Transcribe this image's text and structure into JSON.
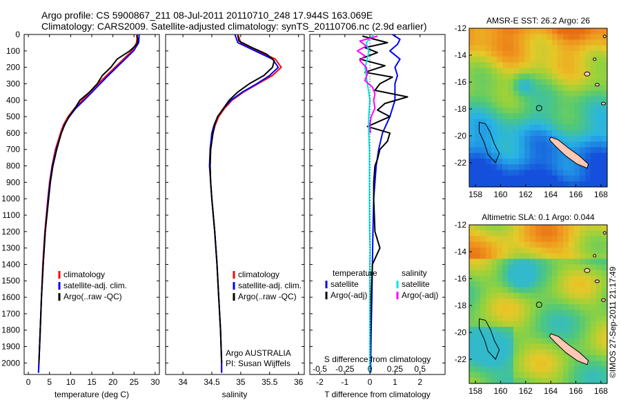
{
  "header": {
    "line1": "Argo profile: CS 5900867_211 08-Jul-2011 20110710_248 17.944S 163.069E",
    "line2": "Climatology: CARS2009. Satellite-adjusted climatology: synTS_20110706.nc (2.9d earlier)"
  },
  "colors": {
    "climatology": "#ff0000",
    "satellite": "#0000ff",
    "argo": "#000000",
    "salinity_satellite": "#00e5e5",
    "salinity_argo": "#ff00ff",
    "land": "#ffc8b4"
  },
  "chart_data": [
    {
      "type": "line",
      "id": "temperature",
      "xlabel": "temperature (deg C)",
      "ylabel": "",
      "xlim": [
        -1,
        31
      ],
      "ylim": [
        2070,
        0
      ],
      "xticks": [
        0,
        5,
        10,
        15,
        20,
        25,
        30
      ],
      "yticks": [
        0,
        100,
        200,
        300,
        400,
        500,
        600,
        700,
        800,
        900,
        1000,
        1100,
        1200,
        1300,
        1400,
        1500,
        1600,
        1700,
        1800,
        1900,
        2000
      ],
      "legend": [
        "climatology",
        "satellite-adj. clim.",
        "Argo(..raw -QC)"
      ],
      "series": [
        {
          "name": "climatology",
          "color": "#ff0000",
          "depth": [
            0,
            50,
            100,
            150,
            200,
            250,
            300,
            350,
            400,
            450,
            500,
            550,
            600,
            700,
            800,
            900,
            1000,
            1200,
            1400,
            1600,
            1800,
            2000,
            2060
          ],
          "values": [
            25.8,
            25.6,
            24.5,
            22.5,
            20.5,
            18.5,
            16.5,
            14.6,
            12.8,
            10.9,
            9.4,
            8.3,
            7.6,
            6.4,
            5.6,
            5.0,
            4.6,
            3.9,
            3.4,
            3.1,
            2.8,
            2.5,
            2.4
          ]
        },
        {
          "name": "satellite-adj. clim.",
          "color": "#0000ff",
          "depth": [
            0,
            50,
            100,
            150,
            200,
            250,
            300,
            350,
            400,
            450,
            500,
            550,
            600,
            700,
            800,
            900,
            1000,
            1200,
            1400,
            1600,
            1800,
            2000,
            2060
          ],
          "values": [
            26.2,
            26.1,
            24.9,
            22.9,
            20.9,
            18.9,
            17.0,
            15.1,
            13.2,
            11.2,
            9.7,
            8.5,
            7.8,
            6.6,
            5.7,
            5.1,
            4.7,
            4.0,
            3.5,
            3.1,
            2.8,
            2.5,
            2.4
          ]
        },
        {
          "name": "Argo(..raw -QC)",
          "color": "#000000",
          "depth": [
            5,
            30,
            60,
            100,
            150,
            200,
            250,
            300,
            350,
            400,
            450,
            500,
            550,
            600,
            700,
            800,
            900,
            1000,
            1200,
            1400,
            1600,
            1800,
            2000
          ],
          "values": [
            25.6,
            25.9,
            25.7,
            24.0,
            21.0,
            19.5,
            17.5,
            16.3,
            14.5,
            12.2,
            11.0,
            9.6,
            8.6,
            7.8,
            6.7,
            5.8,
            5.2,
            4.8,
            4.0,
            3.5,
            3.1,
            2.8,
            2.5
          ]
        }
      ]
    },
    {
      "type": "line",
      "id": "salinity",
      "xlabel": "salinity",
      "ylabel": "",
      "xlim": [
        33.7,
        36.1
      ],
      "ylim": [
        2070,
        0
      ],
      "xticks": [
        34,
        34.5,
        35,
        35.5,
        36
      ],
      "legend": [
        "climatology",
        "satellite-adj. clim.",
        "Argo(..raw -QC)"
      ],
      "annotation": [
        "Argo AUSTRALIA",
        "PI: Susan Wijffels"
      ],
      "series": [
        {
          "name": "climatology",
          "color": "#ff0000",
          "depth": [
            0,
            50,
            100,
            150,
            200,
            250,
            300,
            350,
            400,
            450,
            500,
            550,
            600,
            700,
            800,
            900,
            1000,
            1200,
            1400,
            1600,
            1800,
            2000,
            2060
          ],
          "values": [
            34.95,
            35.0,
            35.3,
            35.6,
            35.7,
            35.55,
            35.3,
            35.05,
            34.85,
            34.72,
            34.62,
            34.56,
            34.52,
            34.48,
            34.47,
            34.48,
            34.5,
            34.55,
            34.59,
            34.62,
            34.65,
            34.67,
            34.67
          ]
        },
        {
          "name": "satellite-adj. clim.",
          "color": "#0000ff",
          "depth": [
            0,
            50,
            100,
            150,
            200,
            250,
            300,
            350,
            400,
            450,
            500,
            550,
            600,
            700,
            800,
            900,
            1000,
            1200,
            1400,
            1600,
            1800,
            2000,
            2060
          ],
          "values": [
            34.9,
            34.95,
            35.25,
            35.55,
            35.65,
            35.5,
            35.28,
            35.03,
            34.83,
            34.7,
            34.6,
            34.54,
            34.5,
            34.47,
            34.46,
            34.48,
            34.5,
            34.55,
            34.59,
            34.62,
            34.65,
            34.67,
            34.67
          ]
        },
        {
          "name": "Argo(..raw -QC)",
          "color": "#000000",
          "depth": [
            5,
            40,
            80,
            120,
            160,
            200,
            250,
            300,
            350,
            400,
            450,
            500,
            550,
            600,
            700,
            800,
            900,
            1000,
            1200,
            1400,
            1600,
            1800,
            2000
          ],
          "values": [
            34.95,
            34.97,
            35.2,
            35.45,
            35.58,
            35.55,
            35.4,
            35.15,
            34.95,
            34.8,
            34.7,
            34.6,
            34.55,
            34.52,
            34.48,
            34.47,
            34.48,
            34.5,
            34.55,
            34.59,
            34.62,
            34.65,
            34.67
          ]
        }
      ]
    },
    {
      "type": "line",
      "id": "difference",
      "xlabel": "T difference from climatology",
      "x2label": "S difference from climatology",
      "xlim": [
        -2.4,
        3.0
      ],
      "ylim": [
        2070,
        0
      ],
      "xticks": [
        -2,
        -1,
        0,
        1,
        2
      ],
      "x2ticks": [
        -0.5,
        -0.25,
        0,
        0.25,
        0.5
      ],
      "legend_groups": [
        {
          "title": "temperature",
          "items": [
            "satellite",
            "Argo(-adj)"
          ]
        },
        {
          "title": "salinity",
          "items": [
            "satellite",
            "Argo(-adj)"
          ]
        }
      ],
      "series": [
        {
          "name": "temperature satellite",
          "color": "#0000ff",
          "depth": [
            0,
            30,
            60,
            100,
            150,
            200,
            250,
            300,
            400,
            500,
            600,
            700,
            800,
            900,
            1000,
            1200,
            1400,
            1600,
            1800,
            2000,
            2060
          ],
          "values": [
            0.9,
            1.2,
            1.1,
            0.8,
            1.2,
            1.0,
            1.1,
            1.0,
            1.0,
            0.8,
            0.5,
            0.35,
            0.25,
            0.2,
            0.15,
            0.12,
            0.1,
            0.08,
            0.05,
            0.03,
            0.03
          ]
        },
        {
          "name": "temperature Argo(-adj)",
          "color": "#000000",
          "depth": [
            10,
            30,
            50,
            80,
            110,
            150,
            190,
            230,
            260,
            300,
            340,
            380,
            420,
            460,
            500,
            560,
            600,
            650,
            700,
            760,
            800,
            900,
            1000,
            1200,
            1300,
            1400,
            1600,
            1800,
            2000
          ],
          "values": [
            -0.3,
            0.2,
            0.7,
            -0.2,
            0.3,
            -0.4,
            0.6,
            -0.2,
            0.9,
            0.4,
            0.2,
            1.5,
            0.6,
            0.3,
            0.8,
            -0.1,
            0.8,
            0.7,
            0.4,
            0.3,
            0.2,
            0.15,
            0.15,
            0.2,
            0.4,
            0.1,
            0.05,
            0.03,
            0.0
          ]
        },
        {
          "name": "salinity satellite",
          "color": "#00e5e5",
          "depth": [
            0,
            50,
            100,
            150,
            200,
            300,
            400,
            500,
            600,
            700,
            800,
            1000,
            1200,
            1300,
            1400,
            1600,
            1800,
            2000,
            2060
          ],
          "values": [
            0.15,
            -0.15,
            -0.05,
            -0.1,
            -0.2,
            -0.1,
            0.0,
            -0.05,
            -0.05,
            -0.02,
            -0.02,
            -0.02,
            -0.01,
            0.01,
            0.0,
            0.0,
            0.0,
            0.0,
            0.0
          ]
        },
        {
          "name": "salinity Argo(-adj)",
          "color": "#ff00ff",
          "depth": [
            10,
            40,
            70,
            100,
            130,
            160,
            200,
            240,
            280,
            320,
            360,
            400,
            450,
            500,
            550,
            600
          ],
          "values": [
            0.3,
            -0.4,
            -0.15,
            -0.5,
            -0.2,
            -0.4,
            -0.15,
            -0.1,
            -0.2,
            0.1,
            0.2,
            0.15,
            0.2,
            0.05,
            0.0,
            0.02
          ]
        }
      ]
    },
    {
      "type": "heatmap",
      "id": "sst_map",
      "title": "AMSR-E SST: 26.2 Argo: 26",
      "xlim": [
        157.5,
        168.5
      ],
      "ylim": [
        -23.8,
        -12
      ],
      "xticks": [
        158,
        160,
        162,
        164,
        166,
        168
      ],
      "yticks": [
        -12,
        -14,
        -16,
        -18,
        -20,
        -22
      ],
      "marker": {
        "lon": 163.069,
        "lat": -17.944
      }
    },
    {
      "type": "heatmap",
      "id": "sla_map",
      "title": "Altimetric SLA: 0.1 Argo: 0.044",
      "xlim": [
        157.5,
        168.5
      ],
      "ylim": [
        -23.8,
        -12
      ],
      "xticks": [
        158,
        160,
        162,
        164,
        166,
        168
      ],
      "yticks": [
        -12,
        -14,
        -16,
        -18,
        -20,
        -22
      ],
      "marker": {
        "lon": 163.069,
        "lat": -17.944
      }
    }
  ],
  "footer": {
    "credit": "©IMOS 27-Sep-2011 21:17:49"
  }
}
